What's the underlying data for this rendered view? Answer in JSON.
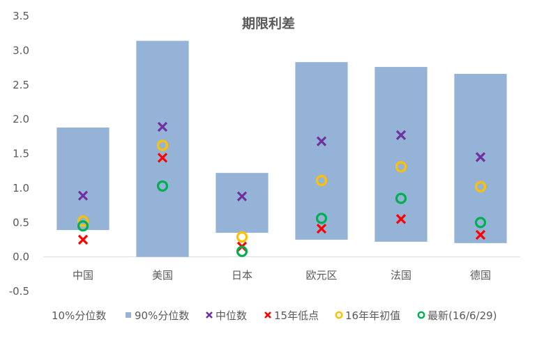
{
  "chart_data": {
    "type": "bar",
    "title": "期限利差",
    "xlabel": "",
    "ylabel": "",
    "ylim": [
      -0.5,
      3.5
    ],
    "yticks": [
      "3.5",
      "3.0",
      "2.5",
      "2.0",
      "1.5",
      "1.0",
      "0.5",
      "0.0",
      "-0.5"
    ],
    "ytick_values": [
      3.5,
      3.0,
      2.5,
      2.0,
      1.5,
      1.0,
      0.5,
      0.0,
      -0.5
    ],
    "grid": false,
    "legend_position": "bottom",
    "categories": [
      "中国",
      "美国",
      "日本",
      "欧元区",
      "法国",
      "德国"
    ],
    "series": [
      {
        "name": "10%分位数",
        "kind": "bar-base",
        "values": [
          0.39,
          0.0,
          0.35,
          0.25,
          0.22,
          0.2
        ]
      },
      {
        "name": "90%分位数",
        "kind": "bar-top",
        "color": "#95b3d7",
        "values": [
          1.88,
          3.14,
          1.22,
          2.83,
          2.76,
          2.66
        ]
      },
      {
        "name": "中位数",
        "kind": "marker-x",
        "color": "#7030a0",
        "values": [
          0.89,
          1.89,
          0.88,
          1.68,
          1.77,
          1.45
        ]
      },
      {
        "name": "15年低点",
        "kind": "marker-x",
        "color": "#ff0000",
        "values": [
          0.25,
          1.44,
          0.15,
          0.41,
          0.55,
          0.32
        ]
      },
      {
        "name": "16年年初值",
        "kind": "marker-o",
        "color": "#ffc000",
        "values": [
          0.52,
          1.62,
          0.29,
          1.11,
          1.31,
          1.02
        ]
      },
      {
        "name": "最新(16/6/29)",
        "kind": "marker-o",
        "color": "#00b050",
        "values": [
          0.45,
          1.03,
          0.08,
          0.56,
          0.85,
          0.5
        ]
      }
    ]
  }
}
